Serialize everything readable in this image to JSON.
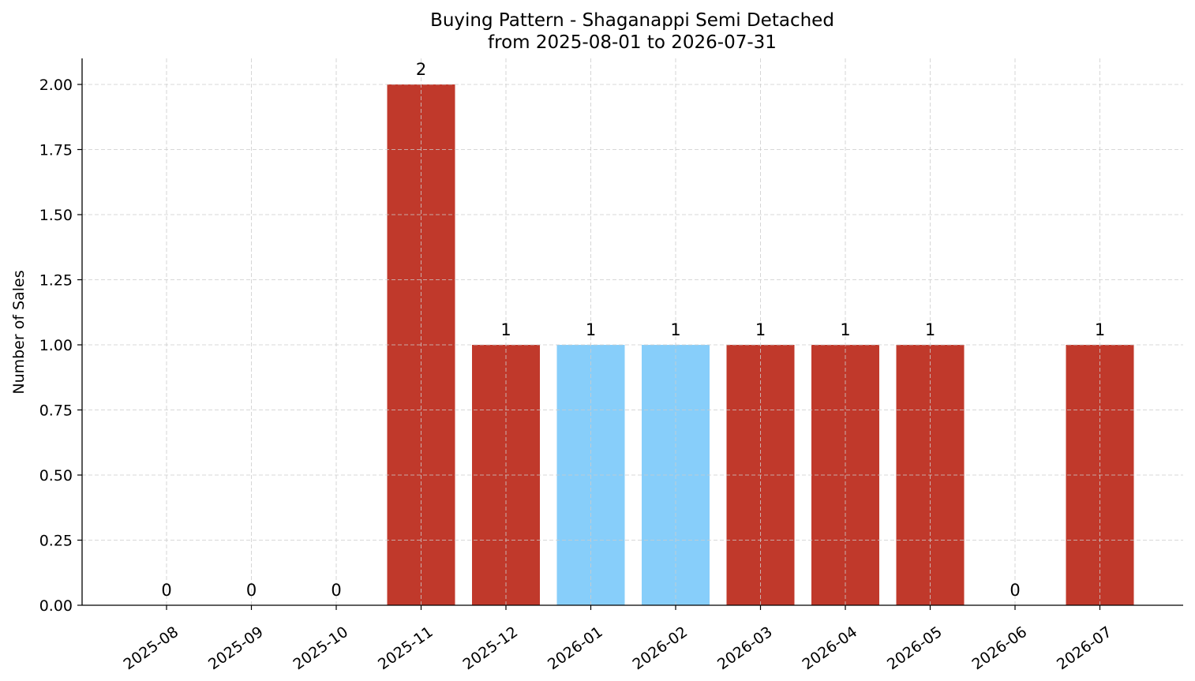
{
  "chart_data": {
    "type": "bar",
    "title": "Buying Pattern - Shaganappi Semi Detached",
    "subtitle": "from 2025-08-01 to 2026-07-31",
    "xlabel": "",
    "ylabel": "Number of Sales",
    "categories": [
      "2025-08",
      "2025-09",
      "2025-10",
      "2025-11",
      "2025-12",
      "2026-01",
      "2026-02",
      "2026-03",
      "2026-04",
      "2026-05",
      "2026-06",
      "2026-07"
    ],
    "values": [
      0,
      0,
      0,
      2,
      1,
      1,
      1,
      1,
      1,
      1,
      0,
      1
    ],
    "value_labels": [
      "0",
      "0",
      "0",
      "2",
      "1",
      "1",
      "1",
      "1",
      "1",
      "1",
      "0",
      "1"
    ],
    "bar_colors": [
      "#c0392b",
      "#c0392b",
      "#c0392b",
      "#c0392b",
      "#c0392b",
      "#87cefa",
      "#87cefa",
      "#c0392b",
      "#c0392b",
      "#c0392b",
      "#c0392b",
      "#c0392b"
    ],
    "ylim": [
      0,
      2.1
    ],
    "yticks": [
      0,
      0.25,
      0.5,
      0.75,
      1.0,
      1.25,
      1.5,
      1.75,
      2.0
    ],
    "ytick_labels": [
      "0.00",
      "0.25",
      "0.50",
      "0.75",
      "1.00",
      "1.25",
      "1.50",
      "1.75",
      "2.00"
    ],
    "grid": true,
    "legend": "none"
  }
}
